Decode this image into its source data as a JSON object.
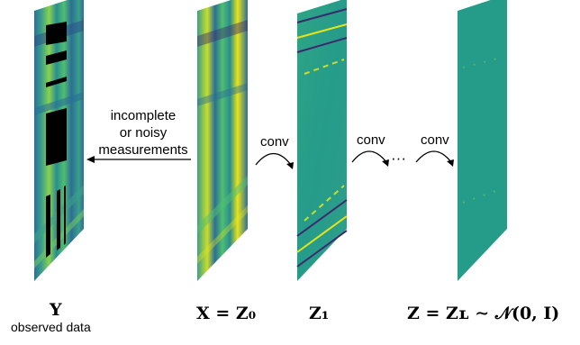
{
  "measurement_label": [
    "incomplete",
    "or noisy",
    "measurements"
  ],
  "conv_labels": [
    "conv",
    "conv",
    "conv"
  ],
  "ellipsis": "···",
  "labels": {
    "y": "Y",
    "y_caption": "observed data",
    "x": "X = Z₀",
    "z1": "Z₁",
    "zl": "Z = Zʟ ∼ 𝒩(0, I)"
  },
  "colors": {
    "viridis_dark": "#3b2a6e",
    "viridis_blue": "#2c6f96",
    "viridis_teal": "#259b8a",
    "viridis_green": "#4fbf6f",
    "viridis_yellow": "#e7e419",
    "mask": "#000000"
  }
}
